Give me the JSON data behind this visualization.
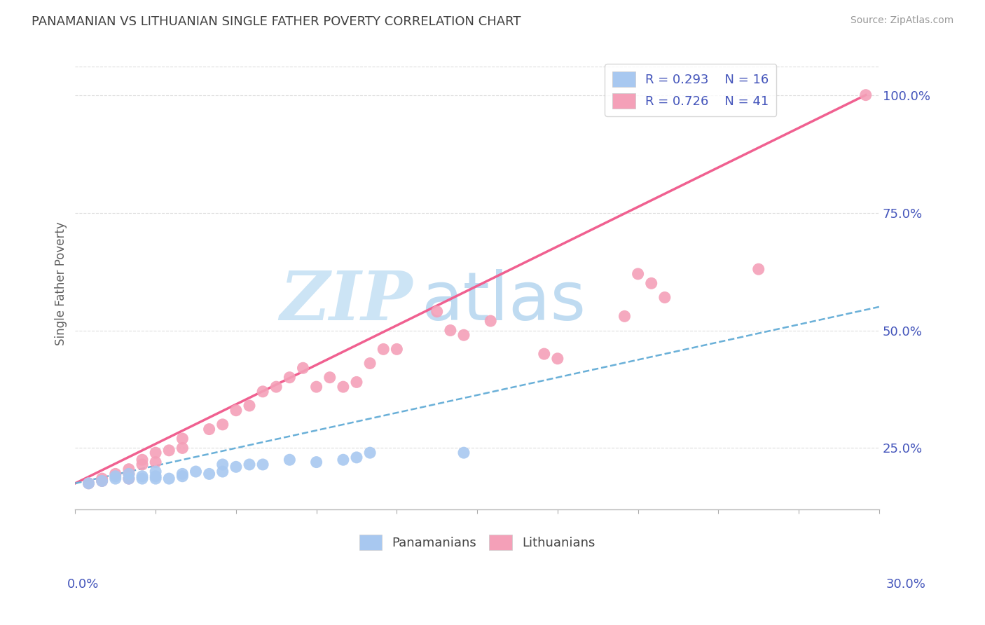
{
  "title": "PANAMANIAN VS LITHUANIAN SINGLE FATHER POVERTY CORRELATION CHART",
  "source": "Source: ZipAtlas.com",
  "ylabel": "Single Father Poverty",
  "right_yticks": [
    "25.0%",
    "50.0%",
    "75.0%",
    "100.0%"
  ],
  "right_ytick_vals": [
    0.25,
    0.5,
    0.75,
    1.0
  ],
  "xmin": 0.0,
  "xmax": 0.3,
  "ymin": 0.12,
  "ymax": 1.08,
  "pan_color": "#a8c8f0",
  "lit_color": "#f4a0b8",
  "pan_line_color": "#6ab0d8",
  "lit_line_color": "#f06090",
  "watermark_zip_color": "#cce4f5",
  "watermark_atlas_color": "#b8d8f0",
  "pan_scatter_x": [
    0.005,
    0.01,
    0.015,
    0.015,
    0.02,
    0.02,
    0.025,
    0.025,
    0.03,
    0.03,
    0.03,
    0.035,
    0.04,
    0.04,
    0.045,
    0.05,
    0.055,
    0.055,
    0.06,
    0.065,
    0.07,
    0.08,
    0.09,
    0.1,
    0.105,
    0.11,
    0.145
  ],
  "pan_scatter_y": [
    0.175,
    0.18,
    0.185,
    0.19,
    0.185,
    0.195,
    0.185,
    0.19,
    0.185,
    0.19,
    0.2,
    0.185,
    0.19,
    0.195,
    0.2,
    0.195,
    0.2,
    0.215,
    0.21,
    0.215,
    0.215,
    0.225,
    0.22,
    0.225,
    0.23,
    0.24,
    0.24
  ],
  "lit_scatter_x": [
    0.005,
    0.01,
    0.01,
    0.015,
    0.02,
    0.02,
    0.02,
    0.025,
    0.025,
    0.03,
    0.03,
    0.035,
    0.04,
    0.04,
    0.05,
    0.055,
    0.06,
    0.065,
    0.07,
    0.075,
    0.08,
    0.085,
    0.09,
    0.095,
    0.1,
    0.105,
    0.11,
    0.115,
    0.12,
    0.135,
    0.14,
    0.145,
    0.155,
    0.175,
    0.18,
    0.205,
    0.21,
    0.215,
    0.22,
    0.255,
    0.295
  ],
  "lit_scatter_y": [
    0.175,
    0.18,
    0.185,
    0.195,
    0.185,
    0.195,
    0.205,
    0.215,
    0.225,
    0.22,
    0.24,
    0.245,
    0.25,
    0.27,
    0.29,
    0.3,
    0.33,
    0.34,
    0.37,
    0.38,
    0.4,
    0.42,
    0.38,
    0.4,
    0.38,
    0.39,
    0.43,
    0.46,
    0.46,
    0.54,
    0.5,
    0.49,
    0.52,
    0.45,
    0.44,
    0.53,
    0.62,
    0.6,
    0.57,
    0.63,
    1.0
  ],
  "lit_line_x0": 0.0,
  "lit_line_y0": 0.175,
  "lit_line_x1": 0.295,
  "lit_line_y1": 1.0,
  "pan_line_x0": 0.0,
  "pan_line_y0": 0.175,
  "pan_line_x1": 0.3,
  "pan_line_y1": 0.55,
  "background_color": "#ffffff",
  "grid_color": "#dddddd",
  "tick_color": "#4455bb",
  "title_color": "#404040",
  "axis_label_color": "#606060"
}
